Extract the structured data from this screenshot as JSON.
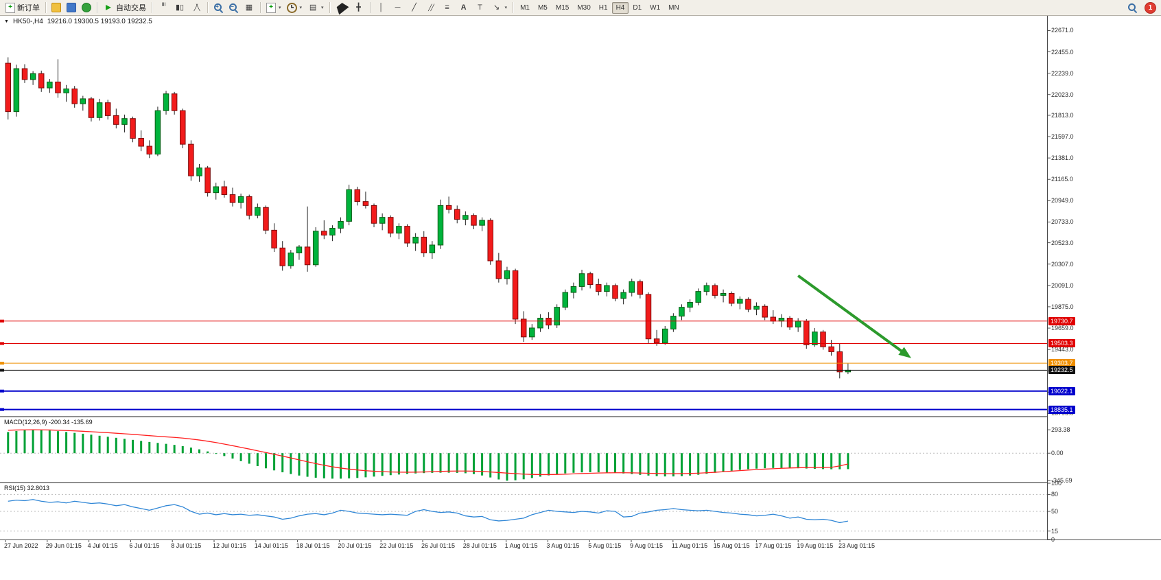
{
  "chart": {
    "symbol_period": "HK50-,H4",
    "ohlc": "19216.0 19300.5 19193.0 19232.5",
    "collapse_icon": "▼"
  },
  "colors": {
    "bull": "#00b33c",
    "bull_border": "#0a5c14",
    "bear": "#f21b1b",
    "bear_border": "#7c0a0a",
    "wick": "#222222",
    "macd_hist": "#00a135",
    "macd_signal": "#ff2020",
    "rsi_line": "#2f86d6",
    "level_red": "#e00000",
    "level_orange": "#ef8f00",
    "level_black": "#111111",
    "level_blue": "#0000cc",
    "arrow_green": "#2c9a2c"
  },
  "toolbar": {
    "groups": [
      {
        "items": [
          {
            "name": "new-order-button",
            "icon": "new-order",
            "label": "新订单"
          }
        ]
      },
      {
        "items": [
          {
            "name": "expert-advisors-button",
            "icon": "yellow-box"
          },
          {
            "name": "community-button",
            "icon": "blue-user"
          },
          {
            "name": "metaquotes-button",
            "icon": "green-orb"
          }
        ]
      },
      {
        "items": [
          {
            "name": "autotrading-button",
            "icon": "autotrading",
            "label": "自动交易"
          }
        ]
      },
      {
        "items": [
          {
            "name": "chart-bars-button",
            "icon": "bars"
          },
          {
            "name": "chart-candles-button",
            "icon": "candles"
          },
          {
            "name": "chart-line-button",
            "icon": "linechart"
          }
        ]
      },
      {
        "items": [
          {
            "name": "zoom-in-button",
            "icon": "zoom-in"
          },
          {
            "name": "zoom-out-button",
            "icon": "zoom-out"
          },
          {
            "name": "tile-windows-button",
            "icon": "tiles"
          }
        ]
      },
      {
        "items": [
          {
            "name": "new-chart-button",
            "icon": "new-chart",
            "dropdown": true
          },
          {
            "name": "periodicity-button",
            "icon": "clock",
            "dropdown": true
          },
          {
            "name": "templates-button",
            "icon": "template",
            "dropdown": true
          }
        ]
      },
      {
        "items": [
          {
            "name": "cursor-button",
            "icon": "cursor"
          },
          {
            "name": "crosshair-button",
            "icon": "crosshair"
          }
        ]
      },
      {
        "items": [
          {
            "name": "vertical-line-button",
            "icon": "vline"
          },
          {
            "name": "horizontal-line-button",
            "icon": "hline"
          },
          {
            "name": "trendline-button",
            "icon": "trendline"
          },
          {
            "name": "equidistant-channel-button",
            "icon": "channel"
          },
          {
            "name": "fibonacci-button",
            "icon": "fibo"
          },
          {
            "name": "text-button",
            "icon": "text-a"
          },
          {
            "name": "label-button",
            "icon": "label-t"
          },
          {
            "name": "arrows-button",
            "icon": "arrow-draw",
            "dropdown": true
          }
        ]
      }
    ],
    "timeframes": [
      {
        "label": "M1"
      },
      {
        "label": "M5"
      },
      {
        "label": "M15"
      },
      {
        "label": "M30"
      },
      {
        "label": "H1"
      },
      {
        "label": "H4",
        "active": true
      },
      {
        "label": "D1"
      },
      {
        "label": "W1"
      },
      {
        "label": "MN"
      }
    ],
    "notification_count": "1"
  },
  "chart_data": [
    {
      "type": "candlestick",
      "symbol": "HK50-",
      "period": "H4",
      "last": {
        "open": 19216.0,
        "high": 19300.5,
        "low": 19193.0,
        "close": 19232.5
      },
      "y_range": [
        18770,
        22820
      ],
      "price_axis_labels": [
        22671.0,
        22455.0,
        22239.0,
        22023.0,
        21813.0,
        21597.0,
        21381.0,
        21165.0,
        20949.0,
        20733.0,
        20523.0,
        20307.0,
        20091.0,
        19875.0,
        19659.0,
        19443.0,
        19227.0,
        19011.0,
        18795.0
      ],
      "levels": [
        {
          "price": 19730.7,
          "label": "19730.7",
          "color": "#e00000",
          "width": 1
        },
        {
          "price": 19503.3,
          "label": "19503.3",
          "color": "#e00000",
          "width": 1
        },
        {
          "price": 19303.7,
          "label": "19303.7",
          "color": "#ef8f00",
          "width": 1
        },
        {
          "price": 19232.5,
          "label": "19232.5",
          "color": "#111111",
          "width": 1
        },
        {
          "price": 19022.1,
          "label": "19022.1",
          "color": "#0000cc",
          "width": 2
        },
        {
          "price": 18835.1,
          "label": "18835.1",
          "color": "#0000cc",
          "width": 2
        }
      ],
      "annotation": {
        "type": "trend-arrow",
        "color": "#2c9a2c",
        "stroke_width": 4,
        "from": {
          "index": 95,
          "price": 20190
        },
        "to": {
          "index": 108.6,
          "price": 19355
        }
      },
      "x_labels": [
        "27 Jun 2022",
        "29 Jun 01:15",
        "4 Jul 01:15",
        "6 Jul 01:15",
        "8 Jul 01:15",
        "12 Jul 01:15",
        "14 Jul 01:15",
        "18 Jul 01:15",
        "20 Jul 01:15",
        "22 Jul 01:15",
        "26 Jul 01:15",
        "28 Jul 01:15",
        "1 Aug 01:15",
        "3 Aug 01:15",
        "5 Aug 01:15",
        "9 Aug 01:15",
        "11 Aug 01:15",
        "15 Aug 01:15",
        "17 Aug 01:15",
        "19 Aug 01:15",
        "23 Aug 01:15"
      ],
      "candles": [
        [
          22340,
          22400,
          21770,
          21850
        ],
        [
          21850,
          22325,
          21800,
          22285
        ],
        [
          22285,
          22330,
          22140,
          22175
        ],
        [
          22175,
          22260,
          22120,
          22235
        ],
        [
          22235,
          22265,
          22050,
          22090
        ],
        [
          22090,
          22180,
          22040,
          22150
        ],
        [
          22150,
          22380,
          21990,
          22040
        ],
        [
          22040,
          22120,
          21950,
          22080
        ],
        [
          22080,
          22110,
          21890,
          21930
        ],
        [
          21930,
          22010,
          21860,
          21980
        ],
        [
          21980,
          22000,
          21750,
          21790
        ],
        [
          21790,
          21980,
          21760,
          21940
        ],
        [
          21940,
          21970,
          21770,
          21810
        ],
        [
          21810,
          21880,
          21680,
          21720
        ],
        [
          21720,
          21820,
          21640,
          21780
        ],
        [
          21780,
          21800,
          21540,
          21580
        ],
        [
          21580,
          21660,
          21450,
          21500
        ],
        [
          21500,
          21560,
          21380,
          21420
        ],
        [
          21420,
          21900,
          21400,
          21860
        ],
        [
          21860,
          22060,
          21820,
          22030
        ],
        [
          22030,
          22050,
          21820,
          21860
        ],
        [
          21860,
          21880,
          21480,
          21520
        ],
        [
          21520,
          21560,
          21150,
          21200
        ],
        [
          21200,
          21320,
          21140,
          21280
        ],
        [
          21280,
          21300,
          20990,
          21030
        ],
        [
          21030,
          21130,
          20960,
          21090
        ],
        [
          21090,
          21150,
          20980,
          21010
        ],
        [
          21010,
          21080,
          20890,
          20930
        ],
        [
          20930,
          21020,
          20870,
          20990
        ],
        [
          20990,
          21010,
          20760,
          20800
        ],
        [
          20800,
          20920,
          20770,
          20880
        ],
        [
          20880,
          20900,
          20610,
          20650
        ],
        [
          20650,
          20720,
          20430,
          20470
        ],
        [
          20470,
          20540,
          20240,
          20290
        ],
        [
          20290,
          20450,
          20260,
          20420
        ],
        [
          20420,
          20500,
          20350,
          20480
        ],
        [
          20480,
          20890,
          20230,
          20300
        ],
        [
          20300,
          20680,
          20280,
          20640
        ],
        [
          20640,
          20750,
          20560,
          20600
        ],
        [
          20600,
          20700,
          20540,
          20670
        ],
        [
          20670,
          20780,
          20620,
          20740
        ],
        [
          20740,
          21110,
          20700,
          21060
        ],
        [
          21060,
          21090,
          20900,
          20940
        ],
        [
          20940,
          21040,
          20870,
          20900
        ],
        [
          20900,
          20920,
          20680,
          20720
        ],
        [
          20720,
          20820,
          20650,
          20780
        ],
        [
          20780,
          20800,
          20580,
          20620
        ],
        [
          20620,
          20720,
          20560,
          20690
        ],
        [
          20690,
          20710,
          20480,
          20520
        ],
        [
          20520,
          20620,
          20440,
          20580
        ],
        [
          20580,
          20640,
          20380,
          20420
        ],
        [
          20420,
          20540,
          20360,
          20500
        ],
        [
          20500,
          20960,
          20460,
          20900
        ],
        [
          20900,
          20990,
          20820,
          20860
        ],
        [
          20860,
          20900,
          20720,
          20760
        ],
        [
          20760,
          20840,
          20700,
          20800
        ],
        [
          20800,
          20820,
          20660,
          20700
        ],
        [
          20700,
          20780,
          20640,
          20750
        ],
        [
          20750,
          20770,
          20300,
          20340
        ],
        [
          20340,
          20420,
          20120,
          20160
        ],
        [
          20160,
          20280,
          20100,
          20240
        ],
        [
          20240,
          20260,
          19700,
          19750
        ],
        [
          19750,
          19830,
          19520,
          19570
        ],
        [
          19570,
          19700,
          19540,
          19660
        ],
        [
          19660,
          19800,
          19620,
          19760
        ],
        [
          19760,
          19820,
          19650,
          19690
        ],
        [
          19690,
          19900,
          19660,
          19870
        ],
        [
          19870,
          20050,
          19840,
          20020
        ],
        [
          20020,
          20120,
          19960,
          20080
        ],
        [
          20080,
          20250,
          20040,
          20210
        ],
        [
          20210,
          20230,
          20060,
          20100
        ],
        [
          20100,
          20160,
          19990,
          20030
        ],
        [
          20030,
          20120,
          19980,
          20090
        ],
        [
          20090,
          20110,
          19930,
          19960
        ],
        [
          19960,
          20050,
          19900,
          20020
        ],
        [
          20020,
          20160,
          19980,
          20130
        ],
        [
          20130,
          20150,
          19960,
          20000
        ],
        [
          20000,
          20020,
          19500,
          19550
        ],
        [
          19550,
          19640,
          19480,
          19510
        ],
        [
          19510,
          19680,
          19490,
          19650
        ],
        [
          19650,
          19810,
          19620,
          19780
        ],
        [
          19780,
          19900,
          19740,
          19870
        ],
        [
          19870,
          19950,
          19820,
          19920
        ],
        [
          19920,
          20060,
          19890,
          20030
        ],
        [
          20030,
          20120,
          19990,
          20090
        ],
        [
          20090,
          20110,
          19960,
          19990
        ],
        [
          19990,
          20050,
          19920,
          20010
        ],
        [
          20010,
          20030,
          19880,
          19910
        ],
        [
          19910,
          19980,
          19850,
          19950
        ],
        [
          19950,
          19970,
          19820,
          19850
        ],
        [
          19850,
          19920,
          19790,
          19880
        ],
        [
          19880,
          19900,
          19740,
          19770
        ],
        [
          19770,
          19840,
          19700,
          19730
        ],
        [
          19730,
          19800,
          19670,
          19760
        ],
        [
          19760,
          19780,
          19640,
          19670
        ],
        [
          19670,
          19760,
          19620,
          19730
        ],
        [
          19730,
          19750,
          19450,
          19490
        ],
        [
          19490,
          19660,
          19470,
          19620
        ],
        [
          19620,
          19640,
          19440,
          19470
        ],
        [
          19470,
          19540,
          19380,
          19420
        ],
        [
          19420,
          19500,
          19150,
          19216
        ],
        [
          19216,
          19300.5,
          19193,
          19232.5
        ]
      ]
    },
    {
      "type": "bar",
      "name": "MACD",
      "label": "MACD(12,26,9) -200.34 -135.69",
      "axis_labels": [
        "293.38",
        "0.00",
        "-345.69"
      ],
      "range": [
        -360,
        450
      ],
      "values": [
        265,
        278,
        288,
        293.38,
        291,
        285,
        276,
        266,
        255,
        244,
        232,
        219,
        206,
        193,
        180,
        167,
        154,
        141,
        129,
        117,
        104,
        88,
        70,
        48,
        22,
        -6,
        -36,
        -68,
        -100,
        -132,
        -162,
        -190,
        -216,
        -240,
        -262,
        -281,
        -296,
        -308,
        -316,
        -320,
        -320,
        -317,
        -311,
        -303,
        -294,
        -285,
        -276,
        -268,
        -261,
        -255,
        -250,
        -247,
        -245,
        -245,
        -247,
        -252,
        -262,
        -280,
        -305,
        -330,
        -345.69,
        -340,
        -328,
        -312,
        -295,
        -279,
        -265,
        -254,
        -246,
        -241,
        -239,
        -240,
        -243,
        -248,
        -255,
        -263,
        -272,
        -281,
        -288,
        -292,
        -292,
        -288,
        -281,
        -271,
        -259,
        -246,
        -233,
        -221,
        -210,
        -201,
        -194,
        -189,
        -186,
        -185,
        -186,
        -189,
        -193,
        -197,
        -200,
        -202,
        -202,
        -200.34
      ],
      "signal": [
        288,
        291,
        293,
        294,
        293,
        291,
        288,
        284,
        280,
        275,
        269,
        263,
        257,
        250,
        243,
        236,
        228,
        220,
        212,
        205,
        198,
        189,
        178,
        165,
        150,
        133,
        114,
        94,
        73,
        52,
        30,
        8,
        -14,
        -37,
        -60,
        -84,
        -108,
        -131,
        -152,
        -171,
        -187,
        -200,
        -211,
        -220,
        -227,
        -232,
        -236,
        -238,
        -239,
        -238,
        -236,
        -233,
        -229,
        -226,
        -224,
        -224,
        -226,
        -230,
        -236,
        -243,
        -250,
        -257,
        -263,
        -267,
        -269,
        -269,
        -267,
        -264,
        -260,
        -256,
        -252,
        -249,
        -247,
        -246,
        -246,
        -247,
        -249,
        -252,
        -255,
        -257,
        -258,
        -257,
        -255,
        -251,
        -246,
        -240,
        -233,
        -226,
        -219,
        -212,
        -206,
        -200,
        -195,
        -190,
        -186,
        -183,
        -181,
        -180,
        -180,
        -178,
        -160,
        -135.69
      ]
    },
    {
      "type": "line",
      "name": "RSI",
      "label": "RSI(15) 32.8013",
      "axis_labels": [
        "100",
        "80",
        "50",
        "15",
        "0"
      ],
      "range": [
        0,
        100
      ],
      "levels": [
        80,
        50,
        15
      ],
      "values": [
        68,
        70,
        69,
        71,
        68,
        66,
        67,
        65,
        68,
        66,
        64,
        65,
        63,
        60,
        62,
        58,
        55,
        52,
        56,
        60,
        62,
        58,
        50,
        45,
        47,
        44,
        46,
        44,
        45,
        43,
        44,
        42,
        40,
        36,
        38,
        42,
        45,
        46,
        44,
        47,
        52,
        50,
        47,
        46,
        45,
        44,
        45,
        44,
        43,
        50,
        53,
        50,
        48,
        49,
        47,
        42,
        40,
        41,
        35,
        33,
        34,
        36,
        38,
        44,
        48,
        52,
        50,
        49,
        48,
        50,
        49,
        47,
        51,
        50,
        40,
        41,
        47,
        49,
        52,
        53,
        55,
        53,
        52,
        51,
        52,
        50,
        48,
        47,
        45,
        44,
        42,
        43,
        45,
        42,
        38,
        40,
        36,
        35,
        36,
        34,
        30,
        32.8
      ]
    }
  ]
}
